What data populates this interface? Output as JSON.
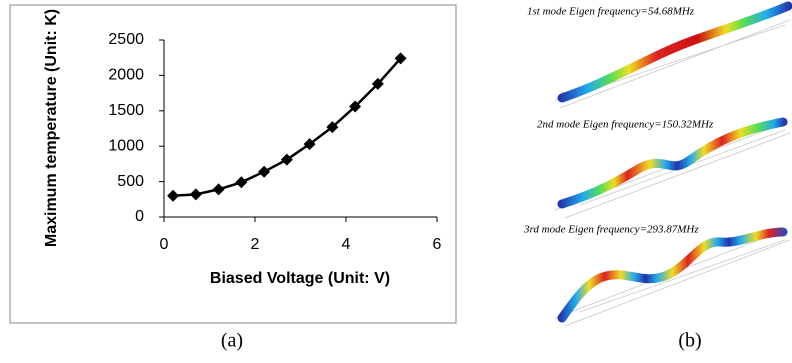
{
  "chart_data": {
    "type": "line",
    "xlabel": "Biased Voltage (Unit: V)",
    "ylabel": "Maximum temperature (Unit: K)",
    "x": [
      0.2,
      0.7,
      1.2,
      1.7,
      2.2,
      2.7,
      3.2,
      3.7,
      4.2,
      4.7,
      5.2
    ],
    "values": [
      300,
      320,
      390,
      490,
      640,
      810,
      1030,
      1270,
      1560,
      1880,
      2240
    ],
    "color": "#000000",
    "marker": "diamond",
    "xlim": [
      0,
      6
    ],
    "xticks": [
      0,
      2,
      4,
      6
    ],
    "ylim": [
      0,
      2500
    ],
    "yticks": [
      0,
      500,
      1000,
      1500,
      2000,
      2500
    ],
    "grid": false
  },
  "panel_labels": [
    "(a)",
    "(b)"
  ],
  "modes": [
    "1st mode  Eigen frequency=54.68MHz",
    "2nd mode  Eigen frequency=150.32MHz",
    "3rd mode  Eigen frequency=293.87MHz"
  ]
}
